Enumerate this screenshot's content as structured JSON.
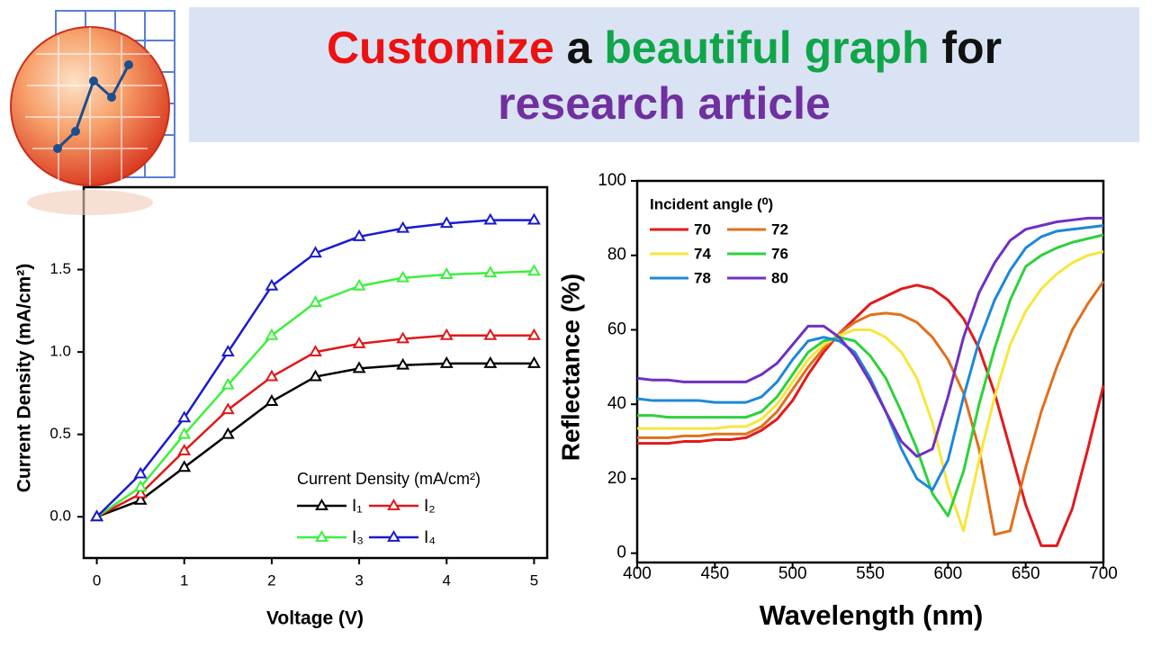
{
  "header": {
    "title": [
      "Customize",
      "a",
      "beautiful graph",
      "for",
      "research article"
    ]
  },
  "chart_data": [
    {
      "type": "line",
      "xlabel": "Voltage (V)",
      "ylabel": "Current Density (mA/cm²)",
      "legend_title": "Current Density (mA/cm²)",
      "legend": "lower right",
      "marker": "triangle",
      "x": [
        0,
        0.5,
        1,
        1.5,
        2,
        2.5,
        3,
        3.5,
        4,
        4.5,
        5
      ],
      "xlim": [
        -0.15,
        5.15
      ],
      "ylim": [
        -0.25,
        2.0
      ],
      "xticks": [
        0,
        1,
        2,
        3,
        4,
        5
      ],
      "yticks": [
        {
          "value": 0,
          "label": "0.0"
        },
        0.5,
        {
          "value": 1,
          "label": "1.0"
        },
        1.5
      ],
      "series": [
        {
          "name": "I₁",
          "color": "#000000",
          "values": [
            0,
            0.1,
            0.3,
            0.5,
            0.7,
            0.85,
            0.9,
            0.92,
            0.93,
            0.93,
            0.93
          ]
        },
        {
          "name": "I₂",
          "color": "#e01818",
          "values": [
            0,
            0.14,
            0.4,
            0.65,
            0.85,
            1.0,
            1.05,
            1.08,
            1.1,
            1.1,
            1.1
          ]
        },
        {
          "name": "I₃",
          "color": "#3cf03c",
          "values": [
            0,
            0.18,
            0.5,
            0.8,
            1.1,
            1.3,
            1.4,
            1.45,
            1.47,
            1.48,
            1.49
          ]
        },
        {
          "name": "I₄",
          "color": "#1a1ad0",
          "values": [
            0,
            0.26,
            0.6,
            1.0,
            1.4,
            1.6,
            1.7,
            1.75,
            1.78,
            1.8,
            1.8
          ]
        }
      ]
    },
    {
      "type": "line",
      "xlabel": "Wavelength (nm)",
      "ylabel": "Reflectance (%)",
      "legend_title": "Incident angle (⁰)",
      "legend": "upper left",
      "x": [
        400,
        410,
        420,
        430,
        440,
        450,
        460,
        470,
        480,
        490,
        500,
        510,
        520,
        530,
        540,
        550,
        560,
        570,
        580,
        590,
        600,
        610,
        620,
        630,
        640,
        650,
        660,
        670,
        680,
        690,
        700
      ],
      "xlim": [
        400,
        700
      ],
      "ylim": [
        -2.5,
        100
      ],
      "xticks": [
        400,
        450,
        500,
        550,
        600,
        650,
        700
      ],
      "yticks": [
        0,
        20,
        40,
        60,
        80,
        100
      ],
      "series": [
        {
          "name": "70",
          "color": "#e31a1c",
          "values": [
            29.5,
            29.5,
            29.5,
            30,
            30,
            30.5,
            30.5,
            31,
            33,
            36,
            41,
            48,
            54,
            59,
            63,
            67,
            69,
            71,
            72,
            71,
            68,
            63,
            55,
            43,
            28,
            13,
            2,
            2,
            12,
            28,
            45
          ]
        },
        {
          "name": "72",
          "color": "#e0701e",
          "values": [
            31,
            31,
            31,
            31.5,
            31.5,
            32,
            32,
            32,
            34,
            38,
            44,
            50,
            55,
            59,
            62,
            64,
            64.5,
            64,
            62,
            58,
            52,
            43,
            28,
            5,
            6,
            23,
            38,
            50,
            60,
            67,
            73
          ]
        },
        {
          "name": "74",
          "color": "#f7e63e",
          "values": [
            33.5,
            33.5,
            33.5,
            33.5,
            33.5,
            33.5,
            34,
            34,
            36,
            40,
            46,
            52,
            56,
            58.5,
            60,
            60,
            58,
            54,
            47,
            35,
            18,
            6,
            25,
            42,
            56,
            65,
            71,
            75,
            78,
            80,
            81
          ]
        },
        {
          "name": "76",
          "color": "#2ed13c",
          "values": [
            37,
            37,
            36.5,
            36.5,
            36.5,
            36.5,
            36.5,
            36.5,
            38,
            42,
            48,
            54,
            57,
            58,
            57,
            53,
            47,
            38,
            28,
            16,
            10,
            22,
            40,
            55,
            68,
            77,
            80,
            82,
            83.5,
            84.5,
            85.5
          ]
        },
        {
          "name": "78",
          "color": "#1e88d8",
          "values": [
            41.5,
            41,
            41,
            41,
            41,
            40.5,
            40.5,
            40.5,
            42,
            46,
            52,
            57,
            58,
            57,
            54,
            47,
            38,
            28,
            20,
            17,
            25,
            42,
            57,
            68,
            76,
            82,
            85,
            86.5,
            87,
            87.5,
            88
          ]
        },
        {
          "name": "80",
          "color": "#7030c0",
          "values": [
            47,
            46.5,
            46.5,
            46,
            46,
            46,
            46,
            46,
            48,
            51,
            56,
            61,
            61,
            58,
            53,
            46,
            38,
            30,
            26,
            28,
            42,
            58,
            70,
            78,
            84,
            87,
            88,
            89,
            89.5,
            90,
            90
          ]
        }
      ]
    }
  ]
}
